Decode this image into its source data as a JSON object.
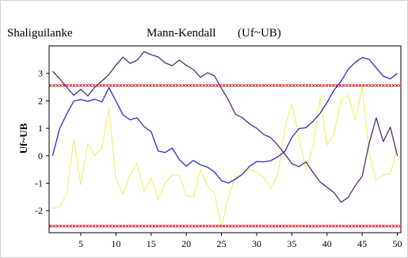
{
  "chart_data": {
    "type": "line",
    "station": "Shaliguilanke",
    "title": "Mann-Kendall",
    "subtitle": "(Uf~UB)",
    "ylabel": "Uf~UB",
    "xlim": [
      0.5,
      50.5
    ],
    "ylim": [
      -2.8,
      4.0
    ],
    "xticks": [
      5,
      10,
      15,
      20,
      25,
      30,
      35,
      40,
      45,
      50
    ],
    "yticks": [
      3,
      2,
      1,
      0,
      -1,
      -2
    ],
    "grid": false,
    "series": [
      {
        "color": "#2b2bd6",
        "x": [
          1,
          2,
          3,
          4,
          5,
          6,
          7,
          8,
          9,
          10,
          11,
          12,
          13,
          14,
          15,
          16,
          17,
          18,
          19,
          20,
          21,
          22,
          23,
          24,
          25,
          26,
          27,
          28,
          29,
          30,
          31,
          32,
          33,
          34,
          35,
          36,
          37,
          38,
          39,
          40,
          41,
          42,
          43,
          44,
          45,
          46,
          47,
          48,
          49,
          50
        ],
        "y": [
          0.0,
          0.99,
          1.52,
          1.99,
          2.05,
          1.98,
          2.06,
          1.96,
          2.48,
          1.99,
          1.49,
          1.31,
          1.38,
          1.06,
          0.88,
          0.17,
          0.12,
          0.28,
          -0.14,
          -0.38,
          -0.17,
          -0.33,
          -0.41,
          -0.59,
          -0.91,
          -0.99,
          -0.85,
          -0.67,
          -0.38,
          -0.21,
          -0.22,
          -0.18,
          -0.04,
          0.16,
          0.67,
          0.99,
          1.02,
          1.25,
          1.54,
          1.94,
          2.39,
          2.71,
          3.14,
          3.4,
          3.58,
          3.51,
          3.2,
          2.9,
          2.8,
          3.0
        ]
      },
      {
        "color": "#5a2a7a",
        "x": [
          1,
          2,
          3,
          4,
          5,
          6,
          7,
          8,
          9,
          10,
          11,
          12,
          13,
          14,
          15,
          16,
          17,
          18,
          19,
          20,
          21,
          22,
          23,
          24,
          25,
          26,
          27,
          28,
          29,
          30,
          31,
          32,
          33,
          34,
          35,
          36,
          37,
          38,
          39,
          40,
          41,
          42,
          43,
          44,
          45,
          46,
          47,
          48,
          49,
          50
        ],
        "y": [
          3.08,
          2.8,
          2.5,
          2.2,
          2.42,
          2.18,
          2.5,
          2.72,
          2.96,
          3.3,
          3.59,
          3.36,
          3.48,
          3.79,
          3.68,
          3.6,
          3.38,
          3.28,
          3.48,
          3.29,
          3.14,
          2.86,
          3.02,
          2.91,
          2.45,
          2.02,
          1.51,
          1.38,
          1.16,
          1.0,
          0.78,
          0.66,
          0.39,
          0.06,
          -0.28,
          -0.4,
          -0.22,
          -0.6,
          -0.95,
          -1.15,
          -1.34,
          -1.69,
          -1.52,
          -1.09,
          -0.74,
          0.46,
          1.38,
          0.52,
          1.04,
          0.0
        ]
      },
      {
        "color": "#f2f07a",
        "x": [
          1,
          2,
          3,
          4,
          5,
          6,
          7,
          8,
          9,
          10,
          11,
          12,
          13,
          14,
          15,
          16,
          17,
          18,
          19,
          20,
          21,
          22,
          23,
          24,
          25,
          26,
          27,
          28,
          29,
          30,
          31,
          32,
          33,
          34,
          35,
          36,
          37,
          38,
          39,
          40,
          41,
          42,
          43,
          44,
          45,
          46,
          47,
          48,
          49,
          50
        ],
        "y": [
          -1.92,
          -1.85,
          -1.4,
          0.6,
          -1.05,
          0.45,
          0.0,
          0.3,
          1.7,
          -0.85,
          -1.4,
          -0.7,
          -0.25,
          -1.3,
          -0.8,
          -1.6,
          -1.0,
          -0.7,
          -0.7,
          -1.45,
          -1.5,
          -0.5,
          -1.1,
          -1.35,
          -2.6,
          -1.45,
          -0.8,
          -0.6,
          -0.5,
          -0.6,
          -0.8,
          -1.2,
          -0.7,
          1.0,
          1.9,
          0.7,
          -0.5,
          0.3,
          2.1,
          0.4,
          0.8,
          2.0,
          2.2,
          1.3,
          2.5,
          0.1,
          -0.9,
          -0.7,
          -0.65,
          0.3
        ]
      },
      {
        "color": "#e0202a",
        "style": "dotted",
        "x": [
          0.5,
          50.5
        ],
        "y": [
          2.56,
          2.56
        ]
      },
      {
        "color": "#e0202a",
        "style": "dotted",
        "x": [
          0.5,
          50.5
        ],
        "y": [
          -2.56,
          -2.56
        ]
      }
    ]
  }
}
